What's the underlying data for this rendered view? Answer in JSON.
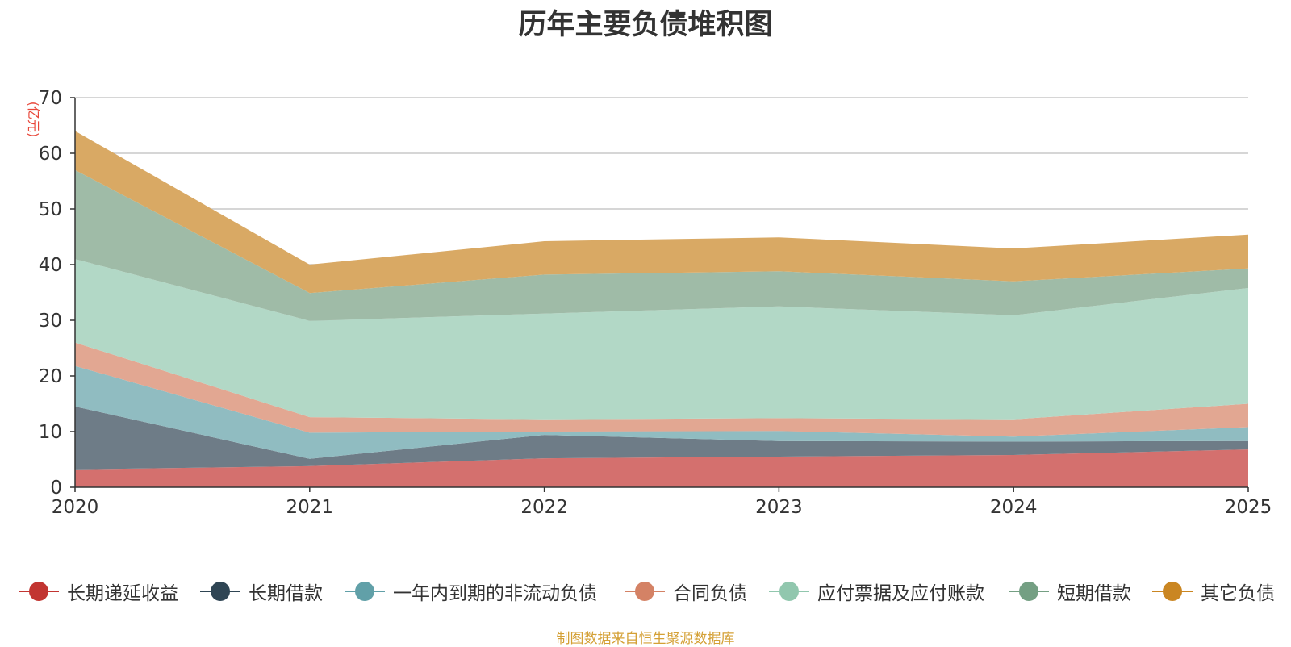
{
  "title": "历年主要负债堆积图",
  "source": "制图数据来自恒生聚源数据库",
  "chart_data": {
    "type": "area",
    "stacked": true,
    "title": "历年主要负债堆积图",
    "ylabel": "(亿元)",
    "xlabel": "",
    "x": [
      "2020",
      "2021",
      "2022",
      "2023",
      "2024",
      "2025"
    ],
    "ylim": [
      0,
      70
    ],
    "yticks": [
      0,
      10,
      20,
      30,
      40,
      50,
      60,
      70
    ],
    "grid": true,
    "legend_position": "bottom",
    "series": [
      {
        "name": "长期递延收益",
        "color": "#c23531",
        "fill": "#d4706e",
        "values": [
          3.2,
          3.8,
          5.2,
          5.5,
          5.8,
          6.8
        ]
      },
      {
        "name": "长期借款",
        "color": "#2f4554",
        "fill": "#6e7c87",
        "values": [
          11.3,
          1.3,
          4.2,
          2.8,
          2.4,
          1.5
        ]
      },
      {
        "name": "一年内到期的非流动负债",
        "color": "#61a0a8",
        "fill": "#90bcc1",
        "values": [
          7.3,
          4.7,
          0.6,
          1.8,
          0.9,
          2.5
        ]
      },
      {
        "name": "合同负债",
        "color": "#d48265",
        "fill": "#e2a792",
        "values": [
          4.2,
          2.8,
          2.2,
          2.3,
          3.1,
          4.2
        ]
      },
      {
        "name": "应付票据及应付账款",
        "color": "#91c7ae",
        "fill": "#b2d8c6",
        "values": [
          15.0,
          17.3,
          19.0,
          20.1,
          18.7,
          20.8
        ]
      },
      {
        "name": "短期借款",
        "color": "#749f83",
        "fill": "#9fbba7",
        "values": [
          16.0,
          5.0,
          7.0,
          6.3,
          6.1,
          3.5
        ]
      },
      {
        "name": "其它负债",
        "color": "#ca8622",
        "fill": "#d9a964",
        "values": [
          7.0,
          5.1,
          6.0,
          6.1,
          5.9,
          6.1
        ]
      }
    ]
  }
}
